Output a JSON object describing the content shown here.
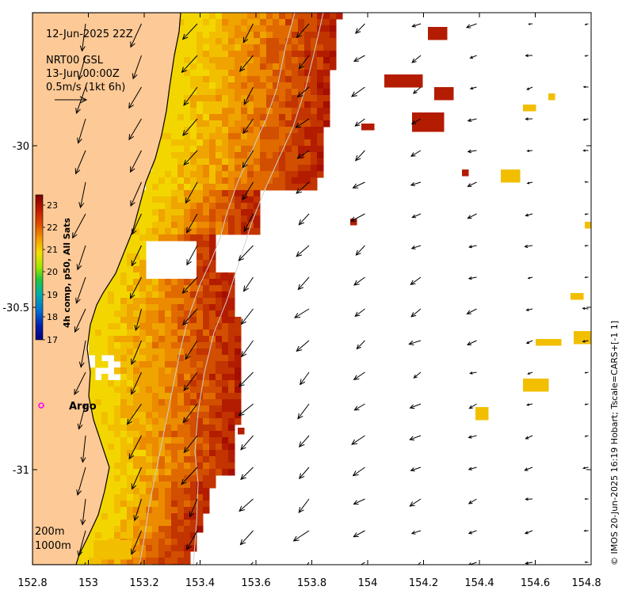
{
  "timestamp": "12-Jun-2025 22Z",
  "current_info": {
    "model": "NRT00 GSL",
    "time": "13-Jun 00:00Z",
    "scale": "0.5m/s (1kt 6h)"
  },
  "station": {
    "label": "Argo",
    "color": "#ff00ff"
  },
  "depth_contours": [
    "200m",
    "1000m"
  ],
  "colorbar": {
    "title": "4h comp, p50, All Sats",
    "ticks": [
      "23",
      "22",
      "21",
      "20",
      "19",
      "18",
      "17"
    ],
    "colors": [
      "#8b0000",
      "#c21f00",
      "#e25a00",
      "#f0a000",
      "#f5e000",
      "#bfe600",
      "#2ecc40",
      "#00b3b3",
      "#0077dd",
      "#0022aa",
      "#00008b"
    ]
  },
  "x_ticks": [
    "152.8",
    "153",
    "153.2",
    "153.4",
    "153.6",
    "153.8",
    "154",
    "154.2",
    "154.4",
    "154.6",
    "154.8"
  ],
  "y_ticks": [
    "-30",
    "-30.5",
    "-31"
  ],
  "credit": "© IMOS 20-Jun-2025 16:19 Hobart; Tscale=CARS+[-1 1]",
  "colors": {
    "land": "#fdc996",
    "sst_warm": "#b71c00",
    "sst_mid": "#e26a00",
    "sst_cool": "#f2c200"
  }
}
